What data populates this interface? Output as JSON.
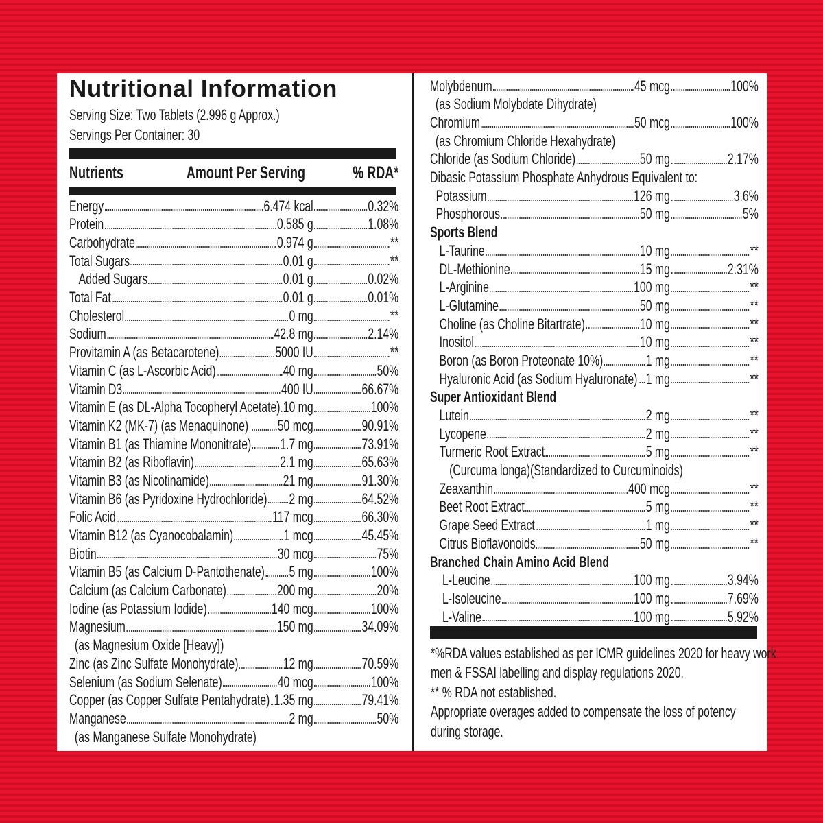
{
  "left": {
    "title": "Nutritional Information",
    "serving_size": "Serving Size: Two Tablets (2.996 g Approx.)",
    "servings_per_container": "Servings Per Container: 30",
    "header": {
      "nutrients": "Nutrients",
      "amount": "Amount Per Serving",
      "rda": "% RDA*"
    },
    "rows": [
      {
        "name": "Energy",
        "amount": "6.474 kcal",
        "rda": "0.32%"
      },
      {
        "name": "Protein",
        "amount": "0.585 g",
        "rda": "1.08%"
      },
      {
        "name": "Carbohydrate",
        "amount": "0.974 g",
        "rda": "**"
      },
      {
        "name": "Total Sugars",
        "amount": "0.01 g",
        "rda": "**",
        "sub_rows": [
          {
            "name": "Added Sugars",
            "amount": "0.01 g",
            "rda": "0.02%"
          }
        ]
      },
      {
        "name": "Total Fat",
        "amount": "0.01 g",
        "rda": "0.01%"
      },
      {
        "name": "Cholesterol",
        "amount": "0 mg",
        "rda": "**"
      },
      {
        "name": "Sodium",
        "amount": "42.8 mg",
        "rda": "2.14%"
      },
      {
        "name": "Provitamin A (as Betacarotene)",
        "amount": "5000 IU",
        "rda": "**"
      },
      {
        "name": "Vitamin C (as L-Ascorbic Acid)",
        "amount": "40 mg",
        "rda": "50%"
      },
      {
        "name": "Vitamin D3",
        "amount": "400 IU",
        "rda": "66.67%"
      },
      {
        "name": "Vitamin E (as DL-Alpha Tocopheryl Acetate)",
        "amount": "10 mg",
        "rda": "100%"
      },
      {
        "name": "Vitamin K2 (MK-7) (as Menaquinone)",
        "amount": "50 mcg",
        "rda": "90.91%"
      },
      {
        "name": "Vitamin B1 (as Thiamine Mononitrate)",
        "amount": "1.7 mg",
        "rda": "73.91%"
      },
      {
        "name": "Vitamin B2 (as Riboflavin)",
        "amount": "2.1 mg",
        "rda": "65.63%"
      },
      {
        "name": "Vitamin B3 (as Nicotinamide)",
        "amount": "21 mg",
        "rda": "91.30%"
      },
      {
        "name": "Vitamin B6 (as Pyridoxine Hydrochloride)",
        "amount": "2 mg",
        "rda": "64.52%"
      },
      {
        "name": "Folic Acid",
        "amount": "117 mcg",
        "rda": "66.30%"
      },
      {
        "name": "Vitamin B12 (as Cyanocobalamin)",
        "amount": "1 mcg",
        "rda": "45.45%"
      },
      {
        "name": "Biotin",
        "amount": "30 mcg",
        "rda": "75%"
      },
      {
        "name": "Vitamin B5 (as Calcium D-Pantothenate)",
        "amount": "5 mg",
        "rda": "100%"
      },
      {
        "name": "Calcium (as Calcium Carbonate)",
        "amount": "200 mg",
        "rda": "20%"
      },
      {
        "name": "Iodine (as Potassium Iodide)",
        "amount": "140 mcg",
        "rda": "100%"
      },
      {
        "name": "Magnesium",
        "amount": "150 mg",
        "rda": "34.09%",
        "note": "(as Magnesium Oxide [Heavy])"
      },
      {
        "name": "Zinc (as Zinc Sulfate Monohydrate)",
        "amount": "12 mg",
        "rda": "70.59%"
      },
      {
        "name": "Selenium (as Sodium Selenate)",
        "amount": "40 mcg",
        "rda": "100%"
      },
      {
        "name": "Copper (as Copper Sulfate Pentahydrate)",
        "amount": "1.35 mg",
        "rda": "79.41%"
      },
      {
        "name": "Manganese",
        "amount": "2 mg",
        "rda": "50%",
        "note": "(as Manganese Sulfate Monohydrate)"
      }
    ]
  },
  "right": {
    "rows": [
      {
        "name": "Molybdenum",
        "amount": "45 mcg",
        "rda": "100%",
        "note": "(as Sodium Molybdate Dihydrate)"
      },
      {
        "name": "Chromium",
        "amount": "50 mcg",
        "rda": "100%",
        "note": "(as Chromium Chloride Hexahydrate)"
      },
      {
        "name": "Chloride (as Sodium Chloride)",
        "amount": "50 mg",
        "rda": "2.17%"
      }
    ],
    "group": {
      "label": "Dibasic Potassium Phosphate Anhydrous Equivalent to:",
      "rows": [
        {
          "name": "Potassium",
          "amount": "126 mg",
          "rda": "3.6%"
        },
        {
          "name": "Phosphorous",
          "amount": "50 mg",
          "rda": "5%"
        }
      ]
    },
    "sections": [
      {
        "heading": "Sports Blend",
        "rows": [
          {
            "name": "L-Taurine",
            "amount": "10 mg",
            "rda": "**"
          },
          {
            "name": "DL-Methionine",
            "amount": "15 mg",
            "rda": "2.31%"
          },
          {
            "name": "L-Arginine",
            "amount": "100 mg",
            "rda": "**"
          },
          {
            "name": "L-Glutamine",
            "amount": "50 mg",
            "rda": "**"
          },
          {
            "name": "Choline (as Choline Bitartrate)",
            "amount": "10 mg",
            "rda": "**"
          },
          {
            "name": "Inositol",
            "amount": "10 mg",
            "rda": "**"
          },
          {
            "name": "Boron (as Boron Proteonate 10%)",
            "amount": "1 mg",
            "rda": "**"
          },
          {
            "name": "Hyaluronic Acid (as Sodium Hyaluronate)",
            "amount": "1 mg",
            "rda": "**"
          }
        ]
      },
      {
        "heading": "Super Antioxidant Blend",
        "rows": [
          {
            "name": "Lutein",
            "amount": "2 mg",
            "rda": "**"
          },
          {
            "name": "Lycopene",
            "amount": "2 mg",
            "rda": "**"
          },
          {
            "name": "Turmeric Root Extract",
            "amount": "5 mg",
            "rda": "**",
            "note": "(Curcuma longa)(Standardized to Curcuminoids)"
          },
          {
            "name": "Zeaxanthin",
            "amount": "400 mcg",
            "rda": "**"
          },
          {
            "name": "Beet Root Extract",
            "amount": "5 mg",
            "rda": "**"
          },
          {
            "name": "Grape Seed Extract",
            "amount": "1 mg",
            "rda": "**"
          },
          {
            "name": "Citrus Bioflavonoids",
            "amount": "50 mg",
            "rda": "**"
          }
        ]
      },
      {
        "heading": "Branched Chain Amino Acid Blend",
        "rows": [
          {
            "name": "L-Leucine",
            "amount": "100 mg",
            "rda": "3.94%"
          },
          {
            "name": "L-Isoleucine",
            "amount": "100 mg",
            "rda": "7.69%"
          },
          {
            "name": "L-Valine",
            "amount": "100 mg",
            "rda": "5.92%"
          }
        ]
      }
    ],
    "footnotes": [
      "*%RDA values established as per ICMR guidelines 2020 for heavy work",
      "men & FSSAI labelling and display regulations 2020.",
      "** % RDA not established.",
      "Appropriate overages added to compensate the loss of potency",
      "during storage."
    ]
  }
}
